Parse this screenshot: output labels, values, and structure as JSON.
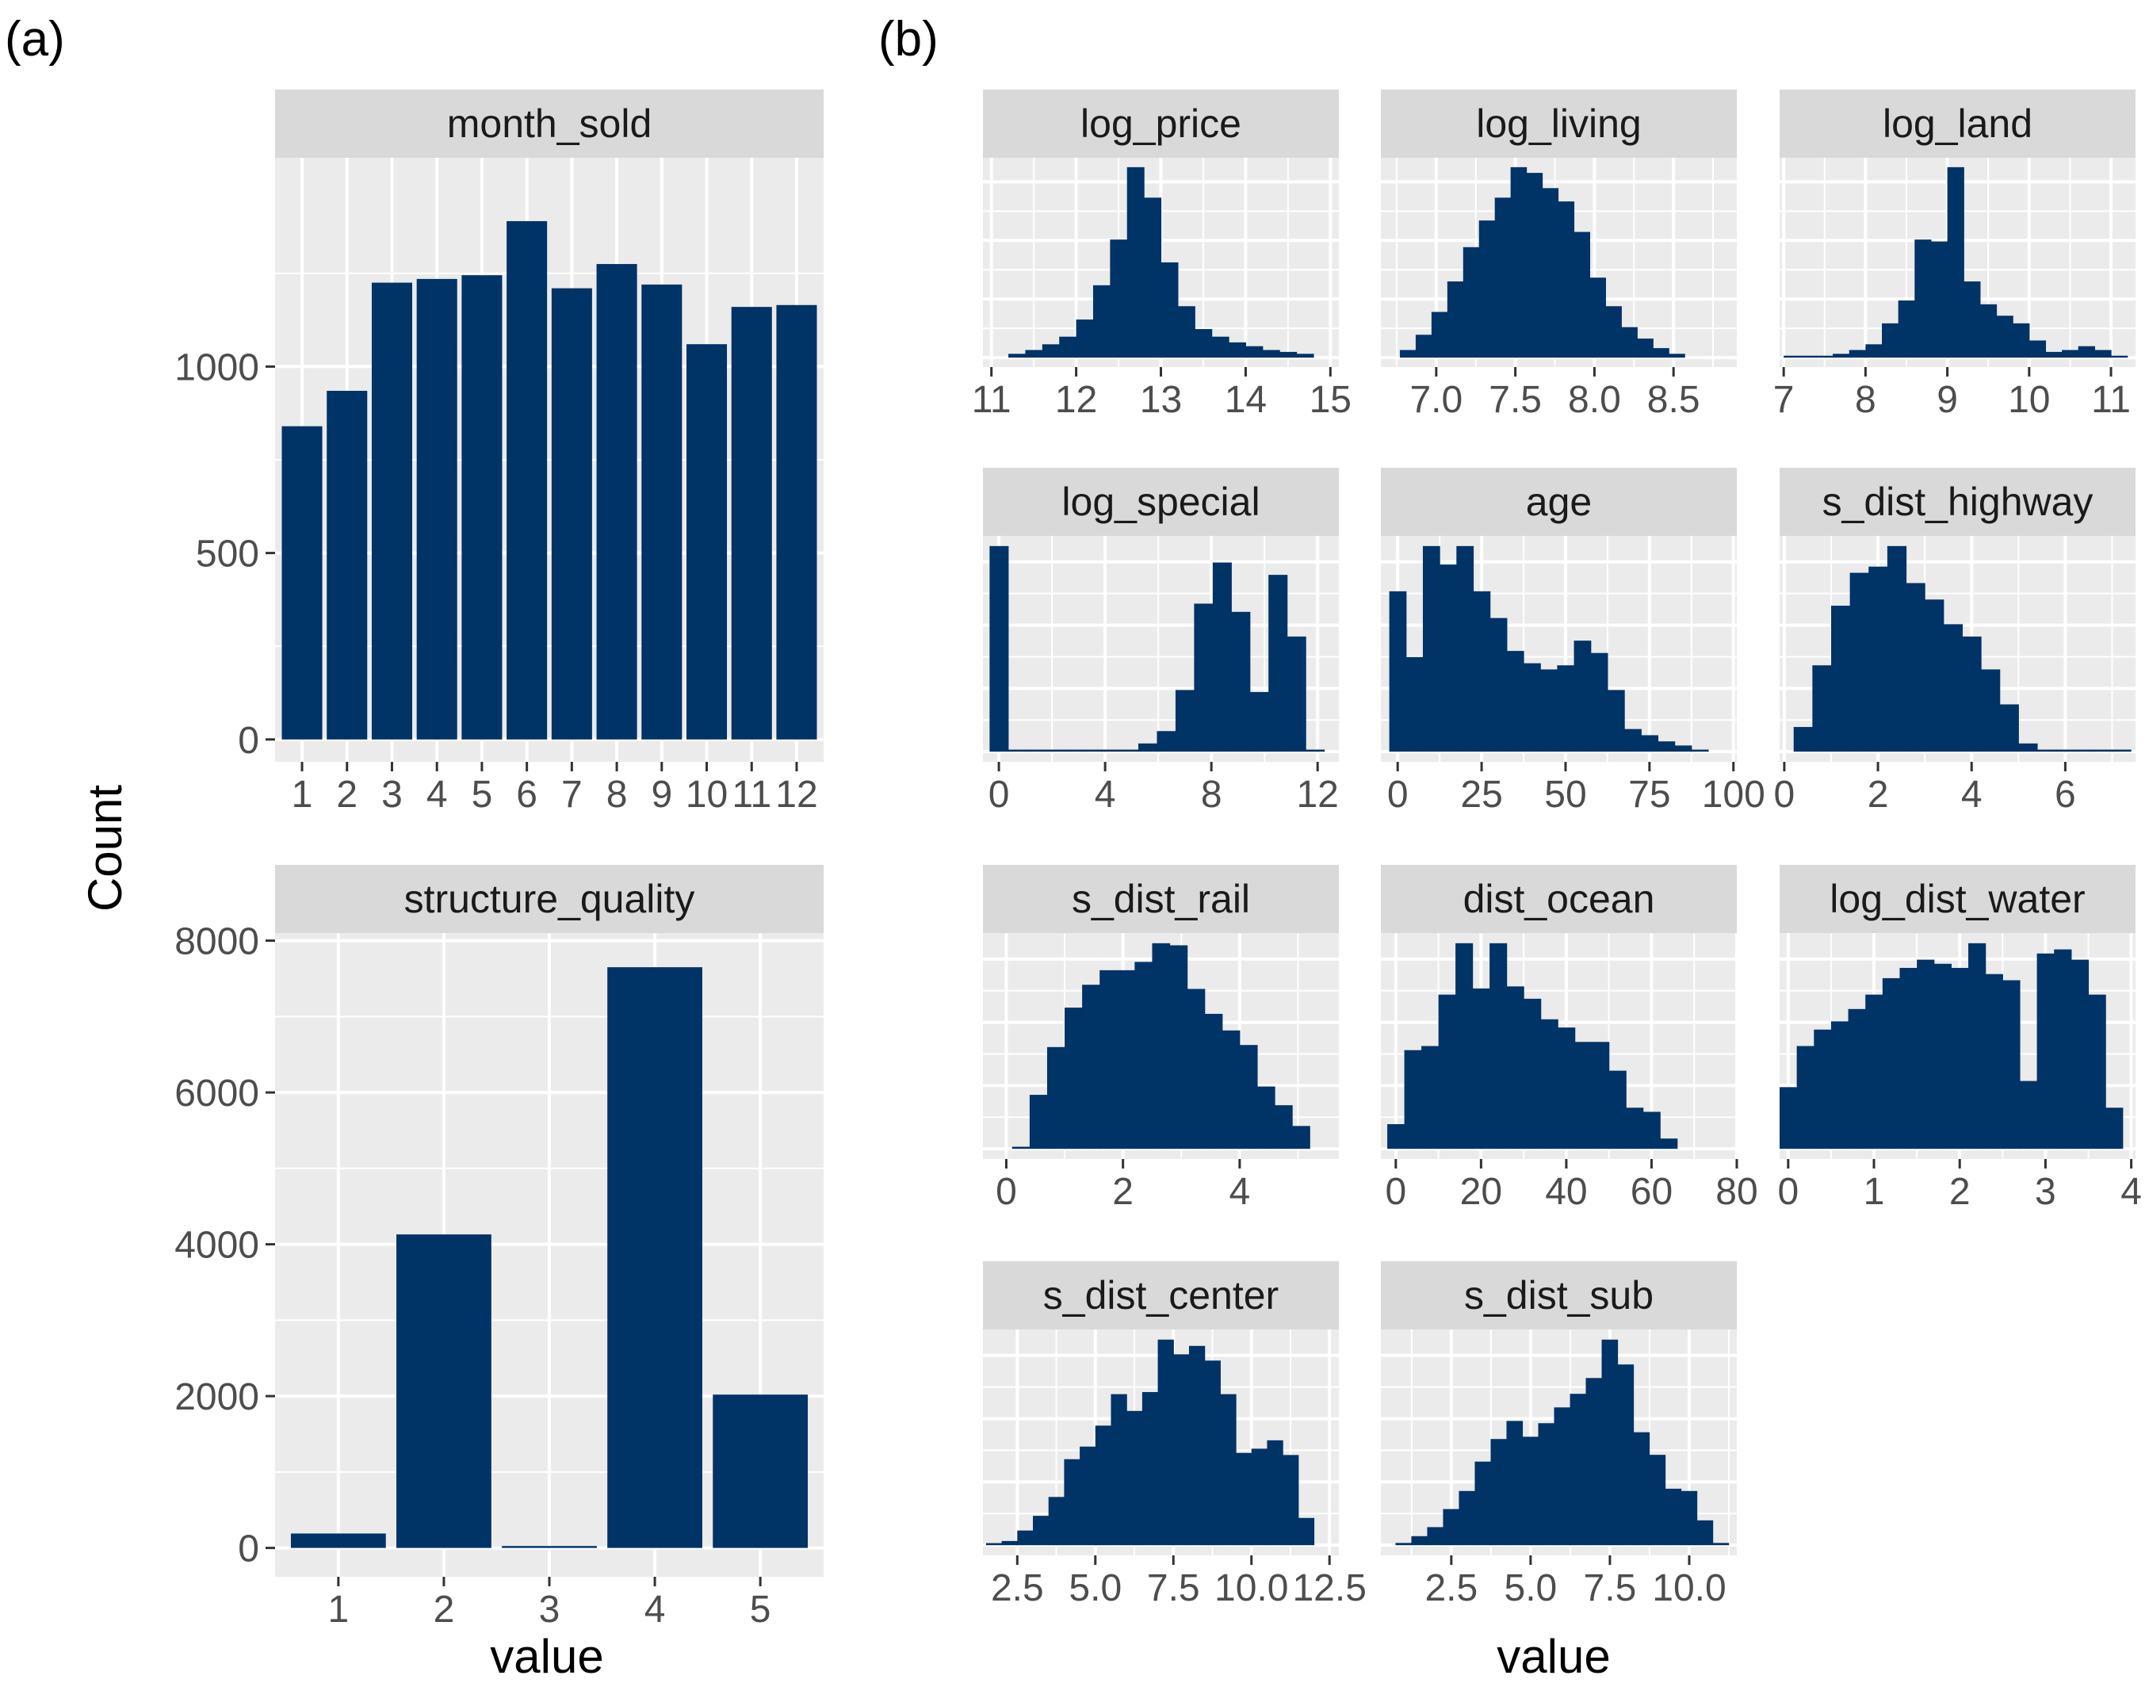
{
  "panel_labels": {
    "a": "(a)",
    "b": "(b)"
  },
  "axis_titles": {
    "y": "Count",
    "x_a": "value",
    "x_b": "value"
  },
  "colors": {
    "bar": "#003366",
    "panel_bg": "#ebebeb",
    "strip_bg": "#d9d9d9",
    "grid": "#ffffff",
    "tick_text": "#4d4d4d",
    "strip_text": "#1a1a1a"
  },
  "chart_data": [
    {
      "type": "bar",
      "facet": "month_sold",
      "categories": [
        "1",
        "2",
        "3",
        "4",
        "5",
        "6",
        "7",
        "8",
        "9",
        "10",
        "11",
        "12"
      ],
      "values": [
        840,
        935,
        1225,
        1235,
        1245,
        1390,
        1210,
        1275,
        1220,
        1060,
        1160,
        1165
      ],
      "xlim": [
        0.4,
        12.6
      ],
      "ylim": [
        -60,
        1560
      ],
      "yticks": [
        0,
        500,
        1000
      ],
      "ytick_labels": [
        "0",
        "500",
        "1000"
      ]
    },
    {
      "type": "bar",
      "facet": "structure_quality",
      "categories": [
        "1",
        "2",
        "3",
        "4",
        "5"
      ],
      "values": [
        190,
        4130,
        25,
        7650,
        2020
      ],
      "xlim": [
        0.4,
        5.6
      ],
      "ylim": [
        -380,
        8100
      ],
      "yticks": [
        0,
        2000,
        4000,
        6000,
        8000
      ],
      "ytick_labels": [
        "0",
        "2000",
        "4000",
        "6000",
        "8000"
      ]
    },
    {
      "type": "histogram",
      "facet": "log_price",
      "bins_start": 11.2,
      "bin_width": 0.2,
      "counts": [
        2,
        4,
        7,
        11,
        20,
        38,
        62,
        100,
        84,
        50,
        27,
        15,
        11,
        8,
        6,
        4,
        3,
        2
      ],
      "xlim": [
        10.9,
        15.1
      ],
      "xticks": [
        11,
        12,
        13,
        14,
        15
      ],
      "xtick_labels": [
        "11",
        "12",
        "13",
        "14",
        "15"
      ]
    },
    {
      "type": "histogram",
      "facet": "log_living",
      "bins_start": 6.77,
      "bin_width": 0.1,
      "counts": [
        4,
        12,
        24,
        40,
        58,
        72,
        84,
        100,
        97,
        89,
        82,
        66,
        42,
        27,
        16,
        10,
        5,
        2
      ],
      "xlim": [
        6.65,
        8.9
      ],
      "xticks": [
        7.0,
        7.5,
        8.0,
        8.5
      ],
      "xtick_labels": [
        "7.0",
        "7.5",
        "8.0",
        "8.5"
      ]
    },
    {
      "type": "histogram",
      "facet": "log_land",
      "bins_start": 7.0,
      "bin_width": 0.2,
      "counts": [
        1,
        1,
        1,
        2,
        4,
        7,
        18,
        30,
        62,
        61,
        100,
        40,
        28,
        22,
        18,
        9,
        3,
        4,
        6,
        4,
        1
      ],
      "xlim": [
        6.95,
        11.3
      ],
      "xticks": [
        7,
        8,
        9,
        10,
        11
      ],
      "xtick_labels": [
        "7",
        "8",
        "9",
        "10",
        "11"
      ]
    },
    {
      "type": "histogram",
      "facet": "log_special",
      "bins_start": -0.35,
      "bin_width": 0.7,
      "counts": [
        100,
        1,
        1,
        1,
        1,
        1,
        1,
        1,
        4,
        10,
        30,
        72,
        92,
        68,
        29,
        86,
        56,
        1
      ],
      "xlim": [
        -0.6,
        12.8
      ],
      "xticks": [
        0,
        4,
        8,
        12
      ],
      "xtick_labels": [
        "0",
        "4",
        "8",
        "12"
      ]
    },
    {
      "type": "histogram",
      "facet": "age",
      "bins_start": -2.5,
      "bin_width": 5,
      "counts": [
        78,
        46,
        100,
        91,
        100,
        78,
        65,
        49,
        43,
        40,
        42,
        54,
        48,
        30,
        11,
        8,
        5,
        3,
        1
      ],
      "xlim": [
        -5,
        101
      ],
      "xticks": [
        0,
        25,
        50,
        75,
        100
      ],
      "xtick_labels": [
        "0",
        "25",
        "50",
        "75",
        "100"
      ]
    },
    {
      "type": "histogram",
      "facet": "s_dist_highway",
      "bins_start": 0.2,
      "bin_width": 0.4,
      "counts": [
        12,
        42,
        71,
        87,
        90,
        100,
        82,
        74,
        62,
        56,
        40,
        23,
        4,
        1,
        1,
        1,
        1,
        1
      ],
      "xlim": [
        -0.1,
        7.5
      ],
      "xticks": [
        0,
        2,
        4,
        6
      ],
      "xtick_labels": [
        "0",
        "2",
        "4",
        "6"
      ]
    },
    {
      "type": "histogram",
      "facet": "s_dist_rail",
      "bins_start": 0.1,
      "bin_width": 0.3,
      "counts": [
        1,
        26,
        49,
        68,
        79,
        86,
        86,
        90,
        99,
        98,
        77,
        65,
        57,
        50,
        30,
        21,
        11
      ],
      "xlim": [
        -0.4,
        5.7
      ],
      "xticks": [
        0,
        2,
        4
      ],
      "xtick_labels": [
        "0",
        "2",
        "4"
      ]
    },
    {
      "type": "histogram",
      "facet": "dist_ocean",
      "bins_start": -2.0,
      "bin_width": 4,
      "counts": [
        12,
        48,
        50,
        75,
        100,
        78,
        100,
        79,
        73,
        63,
        59,
        52,
        52,
        38,
        20,
        18,
        5
      ],
      "xlim": [
        -3.5,
        80
      ],
      "xticks": [
        0,
        20,
        40,
        60,
        80
      ],
      "xtick_labels": [
        "0",
        "20",
        "40",
        "60",
        "80"
      ]
    },
    {
      "type": "histogram",
      "facet": "log_dist_water",
      "bins_start": -0.1,
      "bin_width": 0.2,
      "counts": [
        30,
        50,
        58,
        62,
        68,
        75,
        83,
        88,
        92,
        90,
        88,
        100,
        85,
        82,
        33,
        95,
        97,
        92,
        75,
        20
      ],
      "xlim": [
        -0.1,
        4.05
      ],
      "xticks": [
        0,
        1,
        2,
        3,
        4
      ],
      "xtick_labels": [
        "0",
        "1",
        "2",
        "3",
        "4"
      ]
    },
    {
      "type": "histogram",
      "facet": "s_dist_center",
      "bins_start": 1.5,
      "bin_width": 0.5,
      "counts": [
        1,
        2,
        7,
        14,
        23,
        41,
        47,
        57,
        72,
        64,
        73,
        98,
        91,
        95,
        88,
        72,
        44,
        46,
        50,
        43,
        13
      ],
      "xlim": [
        1.4,
        12.8
      ],
      "xticks": [
        2.5,
        5.0,
        7.5,
        10.0,
        12.5
      ],
      "xtick_labels": [
        "2.5",
        "5.0",
        "7.5",
        "10.0",
        "12.5"
      ]
    },
    {
      "type": "histogram",
      "facet": "s_dist_sub",
      "bins_start": 0.74,
      "bin_width": 0.5,
      "counts": [
        1,
        4,
        8,
        16,
        24,
        37,
        47,
        55,
        48,
        54,
        61,
        67,
        74,
        91,
        80,
        50,
        40,
        25,
        24,
        11,
        1
      ],
      "xlim": [
        0.28,
        11.5
      ],
      "xticks": [
        2.5,
        5.0,
        7.5,
        10.0
      ],
      "xtick_labels": [
        "2.5",
        "5.0",
        "7.5",
        "10.0"
      ]
    }
  ]
}
